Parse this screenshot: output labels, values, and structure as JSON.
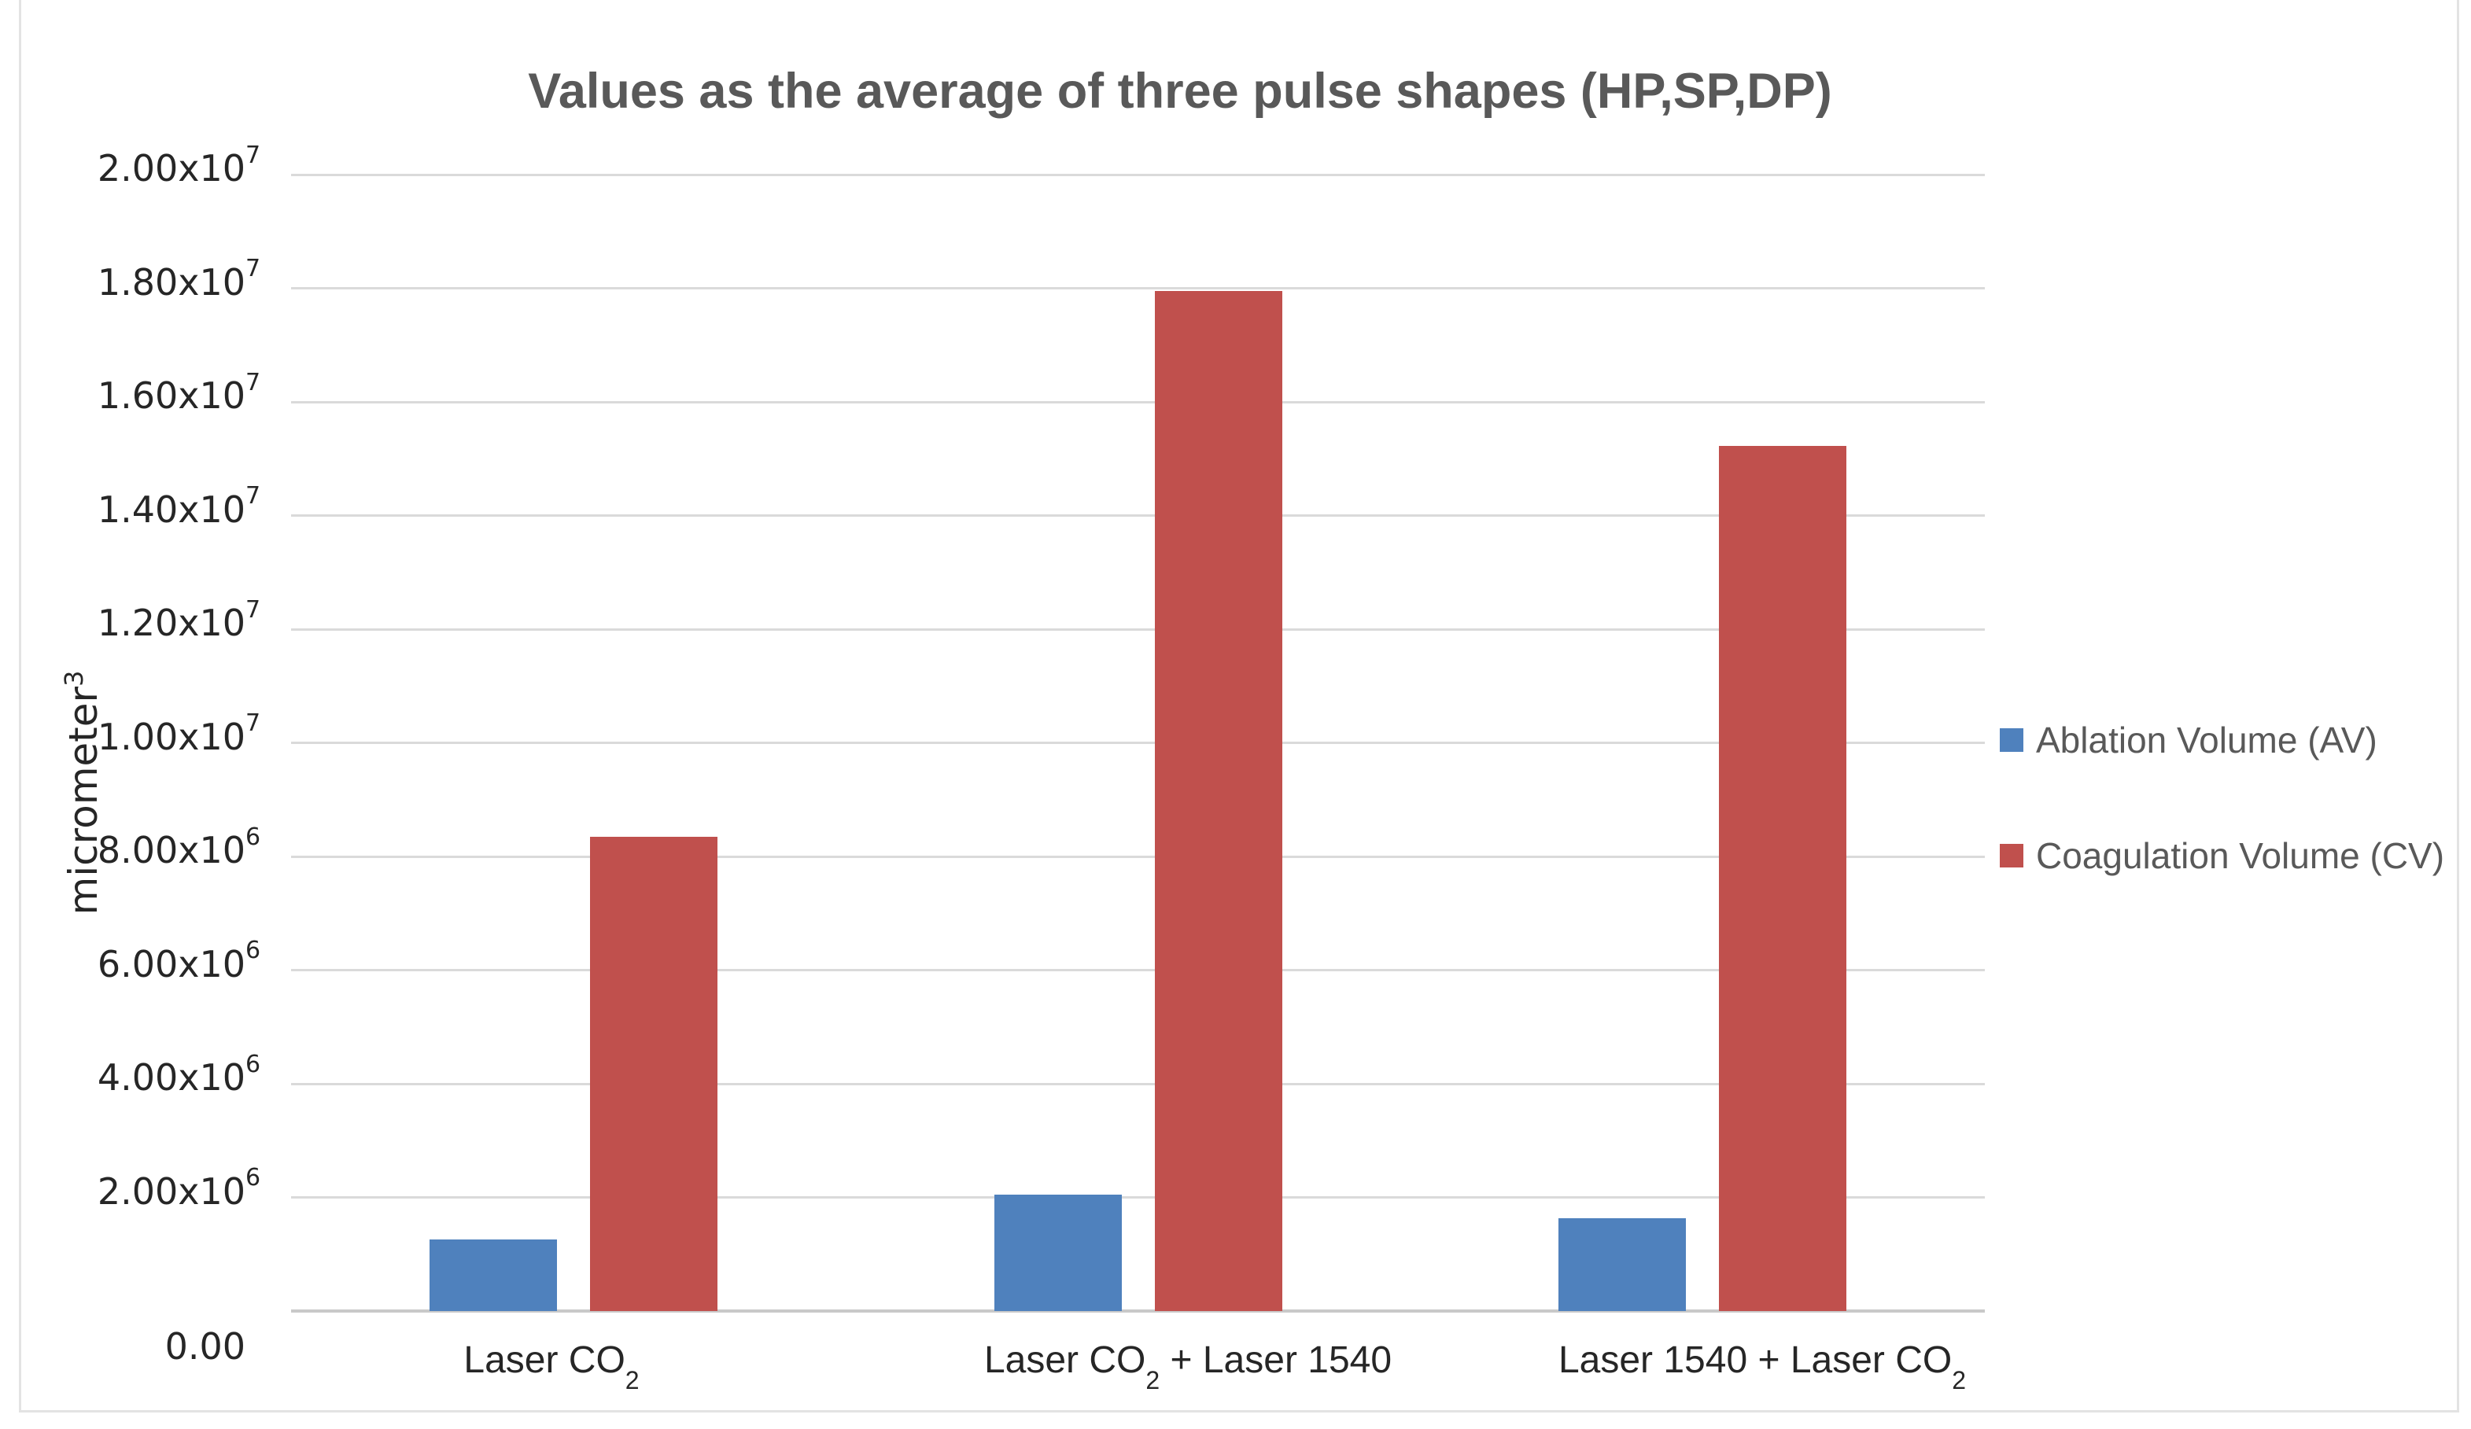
{
  "page": {
    "background_color": "#ffffff",
    "frame_border_color": "#e3e3e3"
  },
  "chart_data": {
    "type": "bar",
    "title": "Values as the average of three pulse shapes (HP,SP,DP)",
    "title_color": "#595959",
    "ylabel": {
      "text": "micrometer",
      "superscript": "3"
    },
    "xlabel": "",
    "categories": [
      {
        "pre": "Laser CO",
        "sub": "2",
        "post": ""
      },
      {
        "pre": "Laser CO",
        "sub": "2",
        "post": " + Laser 1540"
      },
      {
        "pre": "Laser 1540 + Laser CO",
        "sub": "2",
        "post": ""
      }
    ],
    "series": [
      {
        "name": "Ablation Volume (AV)",
        "color": "#4F81BD",
        "values": [
          1260000,
          2050000,
          1630000
        ]
      },
      {
        "name": "Coagulation Volume (CV)",
        "color": "#C0504D",
        "values": [
          8350000,
          17950000,
          15220000
        ]
      }
    ],
    "ylim": [
      0,
      20000000
    ],
    "ytick_step": 2000000,
    "yticks": [
      {
        "mantissa": "0.00",
        "exp": ""
      },
      {
        "mantissa": "2.00x10",
        "exp": "6"
      },
      {
        "mantissa": "4.00x10",
        "exp": "6"
      },
      {
        "mantissa": "6.00x10",
        "exp": "6"
      },
      {
        "mantissa": "8.00x10",
        "exp": "6"
      },
      {
        "mantissa": "1.00x10",
        "exp": "7"
      },
      {
        "mantissa": "1.20x10",
        "exp": "7"
      },
      {
        "mantissa": "1.40x10",
        "exp": "7"
      },
      {
        "mantissa": "1.60x10",
        "exp": "7"
      },
      {
        "mantissa": "1.80x10",
        "exp": "7"
      },
      {
        "mantissa": "2.00x10",
        "exp": "7"
      }
    ],
    "grid": true,
    "legend_position": "right",
    "colors": {
      "gridline": "#dadada",
      "axis_line": "#c9c9c9",
      "tick_text": "#262626",
      "legend_text": "#595959"
    }
  }
}
